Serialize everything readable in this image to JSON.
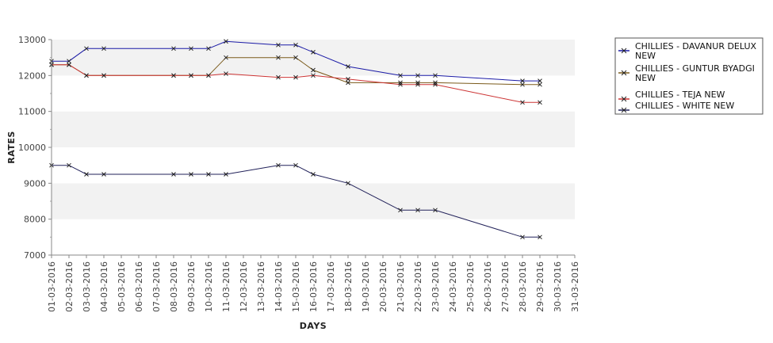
{
  "chart_data": {
    "type": "line",
    "xlabel": "DAYS",
    "ylabel": "RATES",
    "ylim": [
      7000,
      13000
    ],
    "yticks": [
      7000,
      8000,
      9000,
      10000,
      11000,
      12000,
      13000
    ],
    "categories": [
      "01-03-2016",
      "02-03-2016",
      "03-03-2016",
      "04-03-2016",
      "05-03-2016",
      "06-03-2016",
      "07-03-2016",
      "08-03-2016",
      "09-03-2016",
      "10-03-2016",
      "11-03-2016",
      "12-03-2016",
      "13-03-2016",
      "14-03-2016",
      "15-03-2016",
      "16-03-2016",
      "17-03-2016",
      "18-03-2016",
      "19-03-2016",
      "20-03-2016",
      "21-03-2016",
      "22-03-2016",
      "23-03-2016",
      "24-03-2016",
      "25-03-2016",
      "26-03-2016",
      "27-03-2016",
      "28-03-2016",
      "29-03-2016",
      "30-03-2016",
      "31-03-2016"
    ],
    "grid": "alternating horizontal bands",
    "legend_position": "right",
    "series": [
      {
        "name": "CHILLIES - DAVANUR DELUX NEW",
        "color": "#1a1aa6",
        "points": [
          [
            0,
            12400
          ],
          [
            1,
            12400
          ],
          [
            2,
            12750
          ],
          [
            3,
            12750
          ],
          [
            7,
            12750
          ],
          [
            8,
            12750
          ],
          [
            9,
            12750
          ],
          [
            10,
            12950
          ],
          [
            13,
            12850
          ],
          [
            14,
            12850
          ],
          [
            15,
            12650
          ],
          [
            17,
            12250
          ],
          [
            20,
            12000
          ],
          [
            21,
            12000
          ],
          [
            22,
            12000
          ],
          [
            27,
            11850
          ],
          [
            28,
            11850
          ]
        ]
      },
      {
        "name": "CHILLIES - GUNTUR BYADGI NEW",
        "color": "#7a5a1a",
        "points": [
          [
            0,
            12300
          ],
          [
            1,
            12300
          ],
          [
            2,
            12000
          ],
          [
            3,
            12000
          ],
          [
            7,
            12000
          ],
          [
            8,
            12000
          ],
          [
            9,
            12000
          ],
          [
            10,
            12500
          ],
          [
            13,
            12500
          ],
          [
            14,
            12500
          ],
          [
            15,
            12150
          ],
          [
            17,
            11800
          ],
          [
            20,
            11800
          ],
          [
            21,
            11800
          ],
          [
            22,
            11800
          ],
          [
            27,
            11750
          ],
          [
            28,
            11750
          ]
        ]
      },
      {
        "name": "CHILLIES - TEJA NEW",
        "color": "#cc3333",
        "points": [
          [
            0,
            12300
          ],
          [
            1,
            12300
          ],
          [
            2,
            12000
          ],
          [
            3,
            12000
          ],
          [
            7,
            12000
          ],
          [
            8,
            12000
          ],
          [
            9,
            12000
          ],
          [
            10,
            12050
          ],
          [
            13,
            11950
          ],
          [
            14,
            11950
          ],
          [
            15,
            12000
          ],
          [
            17,
            11900
          ],
          [
            20,
            11750
          ],
          [
            21,
            11750
          ],
          [
            22,
            11750
          ],
          [
            27,
            11250
          ],
          [
            28,
            11250
          ]
        ]
      },
      {
        "name": "CHILLIES - WHITE NEW",
        "color": "#22225a",
        "points": [
          [
            0,
            9500
          ],
          [
            1,
            9500
          ],
          [
            2,
            9250
          ],
          [
            3,
            9250
          ],
          [
            7,
            9250
          ],
          [
            8,
            9250
          ],
          [
            9,
            9250
          ],
          [
            10,
            9250
          ],
          [
            13,
            9500
          ],
          [
            14,
            9500
          ],
          [
            15,
            9250
          ],
          [
            17,
            9000
          ],
          [
            20,
            8250
          ],
          [
            21,
            8250
          ],
          [
            22,
            8250
          ],
          [
            27,
            7500
          ],
          [
            28,
            7500
          ]
        ]
      }
    ]
  },
  "legend": {
    "items": [
      {
        "line1": "CHILLIES - DAVANUR DELUX",
        "line2": "NEW"
      },
      {
        "line1": "CHILLIES - GUNTUR BYADGI",
        "line2": "NEW"
      },
      {
        "line1": "CHILLIES - TEJA NEW",
        "line2": ""
      },
      {
        "line1": "CHILLIES - WHITE NEW",
        "line2": ""
      }
    ]
  }
}
